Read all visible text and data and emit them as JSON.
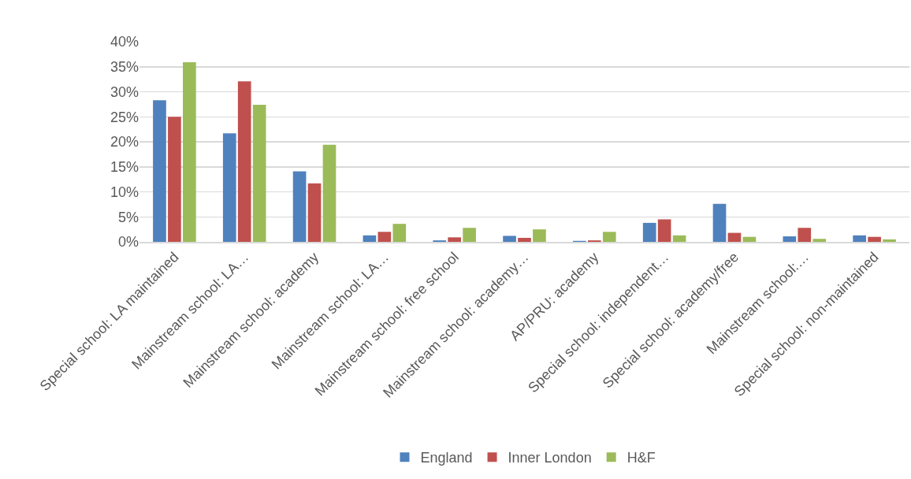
{
  "chart_data": {
    "type": "bar",
    "categories": [
      "Special school: LA maintained",
      "Mainstream school: LA…",
      "Mainstream school: academy",
      "Mainstream school: LA…",
      "Mainstream school: free school",
      "Mainstream school: academy…",
      "AP/PRU: academy",
      "Special school: independent…",
      "Special school: academy/free",
      "Mainstream school:…",
      "Special school: non-maintained"
    ],
    "series": [
      {
        "name": "England",
        "color": "#4f81bd",
        "values": [
          28.3,
          21.7,
          14.1,
          1.3,
          0.3,
          1.2,
          0.2,
          3.8,
          7.6,
          1.1,
          1.3
        ]
      },
      {
        "name": "Inner London",
        "color": "#c0504d",
        "values": [
          25.0,
          32.1,
          11.7,
          2.0,
          0.9,
          0.8,
          0.3,
          4.5,
          1.8,
          2.8,
          1.0
        ]
      },
      {
        "name": "H&F",
        "color": "#9bbb59",
        "values": [
          35.9,
          27.4,
          19.4,
          3.6,
          2.8,
          2.5,
          2.0,
          1.3,
          1.0,
          0.6,
          0.5
        ]
      }
    ],
    "ylim": [
      0,
      40
    ],
    "yticks": [
      {
        "value": 0,
        "label": "0%"
      },
      {
        "value": 5,
        "label": "5%"
      },
      {
        "value": 10,
        "label": "10%"
      },
      {
        "value": 15,
        "label": "15%"
      },
      {
        "value": 20,
        "label": "20%"
      },
      {
        "value": 25,
        "label": "25%"
      },
      {
        "value": 30,
        "label": "30%"
      },
      {
        "value": 35,
        "label": "35%"
      },
      {
        "value": 40,
        "label": "40%"
      }
    ],
    "grid": "y",
    "legend": "bottom"
  }
}
